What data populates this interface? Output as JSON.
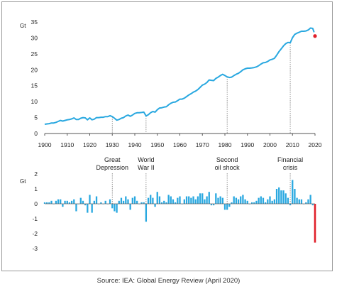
{
  "source": "Source: IEA: Global Energy Review (April 2020)",
  "chart_data": [
    {
      "type": "line",
      "ylabel": "Gt",
      "ylim": [
        0,
        35
      ],
      "yticks": [
        0,
        5,
        10,
        15,
        20,
        25,
        30,
        35
      ],
      "xlim": [
        1900,
        2020
      ],
      "xticks": [
        1900,
        1910,
        1920,
        1930,
        1940,
        1950,
        1960,
        1970,
        1980,
        1990,
        2000,
        2010,
        2020
      ],
      "grid": false,
      "color": "#29a8e0",
      "x": [
        1900,
        1901,
        1902,
        1903,
        1904,
        1905,
        1906,
        1907,
        1908,
        1909,
        1910,
        1911,
        1912,
        1913,
        1914,
        1915,
        1916,
        1917,
        1918,
        1919,
        1920,
        1921,
        1922,
        1923,
        1924,
        1925,
        1926,
        1927,
        1928,
        1929,
        1930,
        1931,
        1932,
        1933,
        1934,
        1935,
        1936,
        1937,
        1938,
        1939,
        1940,
        1941,
        1942,
        1943,
        1944,
        1945,
        1946,
        1947,
        1948,
        1949,
        1950,
        1951,
        1952,
        1953,
        1954,
        1955,
        1956,
        1957,
        1958,
        1959,
        1960,
        1961,
        1962,
        1963,
        1964,
        1965,
        1966,
        1967,
        1968,
        1969,
        1970,
        1971,
        1972,
        1973,
        1974,
        1975,
        1976,
        1977,
        1978,
        1979,
        1980,
        1981,
        1982,
        1983,
        1984,
        1985,
        1986,
        1987,
        1988,
        1989,
        1990,
        1991,
        1992,
        1993,
        1994,
        1995,
        1996,
        1997,
        1998,
        1999,
        2000,
        2001,
        2002,
        2003,
        2004,
        2005,
        2006,
        2007,
        2008,
        2009,
        2010,
        2011,
        2012,
        2013,
        2014,
        2015,
        2016,
        2017,
        2018,
        2019
      ],
      "y": [
        2.9,
        3.0,
        3.1,
        3.3,
        3.3,
        3.5,
        3.8,
        4.1,
        3.9,
        4.1,
        4.3,
        4.4,
        4.6,
        4.9,
        4.4,
        4.4,
        4.8,
        5.0,
        4.9,
        4.3,
        4.9,
        4.3,
        4.5,
        5.0,
        5.0,
        5.1,
        5.1,
        5.3,
        5.3,
        5.6,
        5.3,
        4.8,
        4.2,
        4.4,
        4.8,
        5.0,
        5.5,
        5.8,
        5.4,
        5.8,
        6.3,
        6.5,
        6.5,
        6.6,
        6.7,
        5.5,
        5.9,
        6.5,
        6.9,
        6.7,
        7.5,
        8.0,
        8.1,
        8.3,
        8.4,
        9.0,
        9.5,
        9.8,
        9.9,
        10.3,
        10.8,
        10.8,
        11.1,
        11.6,
        12.1,
        12.5,
        13.0,
        13.3,
        13.8,
        14.5,
        15.2,
        15.5,
        16.0,
        16.8,
        16.7,
        16.6,
        17.3,
        17.7,
        18.2,
        18.6,
        18.2,
        17.8,
        17.6,
        17.7,
        18.2,
        18.6,
        18.9,
        19.4,
        20.0,
        20.3,
        20.5,
        20.5,
        20.6,
        20.7,
        20.9,
        21.3,
        21.8,
        22.2,
        22.3,
        22.6,
        23.1,
        23.3,
        23.6,
        24.6,
        25.7,
        26.6,
        27.5,
        28.2,
        28.6,
        28.5,
        30.1,
        31.1,
        31.5,
        31.8,
        32.1,
        32.1,
        32.2,
        32.5,
        33.1,
        33.0
      ],
      "highlight_point": {
        "x": 2020,
        "y": 30.6,
        "color": "#e0202a"
      },
      "annotations": [
        1930,
        1945,
        1981,
        2009
      ]
    },
    {
      "type": "bar",
      "ylabel": "Gt",
      "ylim": [
        -3,
        2
      ],
      "yticks": [
        -3,
        -2,
        -1,
        0,
        1,
        2
      ],
      "grid": false,
      "color": "#29a8e0",
      "x": [
        1900,
        1901,
        1902,
        1903,
        1904,
        1905,
        1906,
        1907,
        1908,
        1909,
        1910,
        1911,
        1912,
        1913,
        1914,
        1915,
        1916,
        1917,
        1918,
        1919,
        1920,
        1921,
        1922,
        1923,
        1924,
        1925,
        1926,
        1927,
        1928,
        1929,
        1930,
        1931,
        1932,
        1933,
        1934,
        1935,
        1936,
        1937,
        1938,
        1939,
        1940,
        1941,
        1942,
        1943,
        1944,
        1945,
        1946,
        1947,
        1948,
        1949,
        1950,
        1951,
        1952,
        1953,
        1954,
        1955,
        1956,
        1957,
        1958,
        1959,
        1960,
        1961,
        1962,
        1963,
        1964,
        1965,
        1966,
        1967,
        1968,
        1969,
        1970,
        1971,
        1972,
        1973,
        1974,
        1975,
        1976,
        1977,
        1978,
        1979,
        1980,
        1981,
        1982,
        1983,
        1984,
        1985,
        1986,
        1987,
        1988,
        1989,
        1990,
        1991,
        1992,
        1993,
        1994,
        1995,
        1996,
        1997,
        1998,
        1999,
        2000,
        2001,
        2002,
        2003,
        2004,
        2005,
        2006,
        2007,
        2008,
        2009,
        2010,
        2011,
        2012,
        2013,
        2014,
        2015,
        2016,
        2017,
        2018,
        2019
      ],
      "values": [
        0.1,
        0.1,
        0.1,
        0.2,
        0.0,
        0.2,
        0.3,
        0.3,
        -0.2,
        0.2,
        0.2,
        0.1,
        0.2,
        0.3,
        -0.5,
        0.0,
        0.4,
        0.2,
        -0.1,
        -0.6,
        0.6,
        -0.6,
        0.2,
        0.5,
        0.0,
        0.1,
        0.0,
        0.2,
        0.0,
        0.3,
        -0.3,
        -0.5,
        -0.6,
        0.2,
        0.4,
        0.2,
        0.5,
        0.3,
        -0.4,
        0.4,
        0.5,
        0.2,
        0.0,
        0.1,
        0.1,
        -1.2,
        0.4,
        0.6,
        0.4,
        -0.2,
        0.8,
        0.5,
        0.1,
        0.2,
        0.1,
        0.6,
        0.5,
        0.3,
        0.1,
        0.4,
        0.5,
        0.0,
        0.3,
        0.5,
        0.5,
        0.4,
        0.5,
        0.3,
        0.5,
        0.7,
        0.7,
        0.3,
        0.5,
        0.8,
        -0.1,
        -0.1,
        0.7,
        0.4,
        0.5,
        0.4,
        -0.4,
        -0.4,
        -0.2,
        0.1,
        0.5,
        0.4,
        0.3,
        0.5,
        0.6,
        0.3,
        0.2,
        0.0,
        0.1,
        0.1,
        0.2,
        0.4,
        0.5,
        0.4,
        0.1,
        0.3,
        0.5,
        0.2,
        0.3,
        1.0,
        1.1,
        0.9,
        0.9,
        0.7,
        0.4,
        -0.1,
        1.6,
        1.0,
        0.4,
        0.3,
        0.3,
        0.0,
        0.1,
        0.3,
        0.6,
        -0.1
      ],
      "highlight_bar": {
        "x": 2020,
        "value": -2.6,
        "color": "#e0202a"
      },
      "annotations": [
        {
          "x": 1930,
          "lines": [
            "Great",
            "Depression"
          ]
        },
        {
          "x": 1945,
          "lines": [
            "World",
            "War II"
          ]
        },
        {
          "x": 1981,
          "lines": [
            "Second",
            "oil shock"
          ]
        },
        {
          "x": 2009,
          "lines": [
            "Financial",
            "crisis"
          ]
        }
      ]
    }
  ]
}
